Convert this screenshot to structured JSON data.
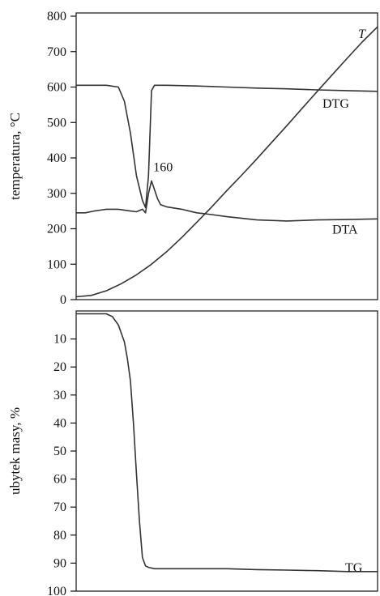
{
  "chart_data": [
    {
      "type": "line",
      "ylabel": "temperatura, °C",
      "xlabel": "",
      "ylim": [
        0,
        800
      ],
      "yticks": [
        0,
        100,
        200,
        300,
        400,
        500,
        600,
        700,
        800
      ],
      "xlim": [
        0,
        100
      ],
      "annotations": [
        {
          "text": "160",
          "x": 24,
          "y": 330
        }
      ],
      "series": [
        {
          "name": "T",
          "label_style": "italic",
          "x": [
            0,
            5,
            10,
            15,
            20,
            25,
            30,
            35,
            40,
            45,
            50,
            55,
            60,
            65,
            70,
            75,
            80,
            85,
            90,
            95,
            100
          ],
          "y": [
            8,
            12,
            25,
            45,
            70,
            100,
            135,
            175,
            218,
            262,
            308,
            352,
            398,
            445,
            492,
            540,
            588,
            635,
            682,
            728,
            770
          ]
        },
        {
          "name": "DTG",
          "x": [
            0,
            5,
            10,
            14,
            16,
            18,
            20,
            22,
            23,
            24,
            25,
            26,
            28,
            30,
            40,
            50,
            60,
            70,
            80,
            90,
            100
          ],
          "y": [
            605,
            605,
            605,
            600,
            560,
            470,
            350,
            280,
            260,
            350,
            590,
            605,
            605,
            605,
            603,
            600,
            597,
            595,
            592,
            590,
            588
          ]
        },
        {
          "name": "DTA",
          "x": [
            0,
            3,
            6,
            10,
            14,
            18,
            20,
            22,
            23,
            24,
            25,
            26,
            27,
            28,
            30,
            35,
            40,
            45,
            50,
            60,
            70,
            80,
            90,
            100
          ],
          "y": [
            245,
            245,
            250,
            255,
            255,
            250,
            248,
            255,
            245,
            300,
            335,
            310,
            285,
            268,
            262,
            255,
            245,
            240,
            234,
            225,
            222,
            225,
            226,
            228
          ]
        }
      ]
    },
    {
      "type": "line",
      "ylabel": "ubytek masy, %",
      "xlabel": "",
      "ylim": [
        100,
        0
      ],
      "yticks": [
        10,
        20,
        30,
        40,
        50,
        60,
        70,
        80,
        90,
        100
      ],
      "xlim": [
        0,
        100
      ],
      "series": [
        {
          "name": "TG",
          "x": [
            0,
            5,
            10,
            12,
            14,
            16,
            17,
            18,
            19,
            20,
            21,
            22,
            23,
            24,
            26,
            30,
            40,
            50,
            60,
            70,
            80,
            90,
            100
          ],
          "y": [
            1,
            1,
            1,
            2,
            5,
            11,
            17,
            25,
            40,
            58,
            75,
            88,
            91,
            91.5,
            92,
            92,
            92,
            92,
            92.3,
            92.5,
            92.7,
            93,
            93
          ]
        }
      ]
    }
  ]
}
